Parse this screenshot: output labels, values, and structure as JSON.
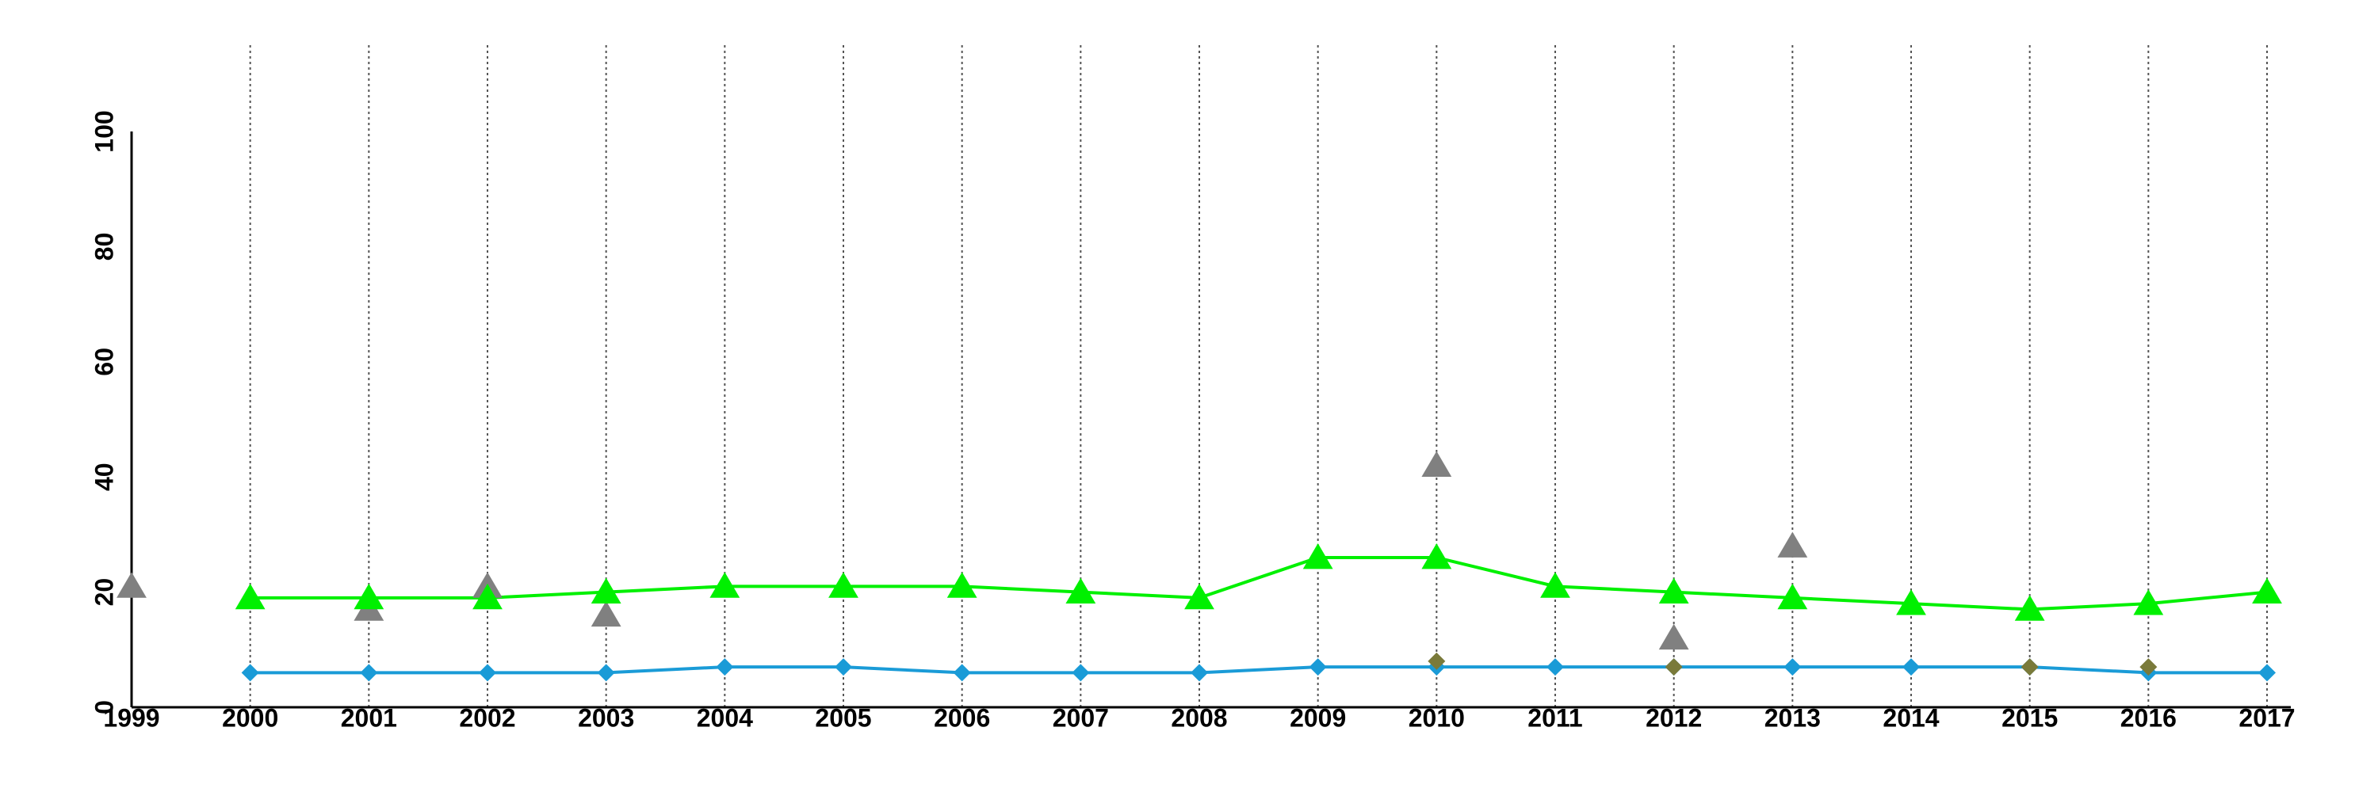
{
  "chart_data": {
    "type": "line",
    "x": [
      1999,
      2000,
      2001,
      2002,
      2003,
      2004,
      2005,
      2006,
      2007,
      2008,
      2009,
      2010,
      2011,
      2012,
      2013,
      2014,
      2015,
      2016,
      2017
    ],
    "xlim": [
      1999,
      2017
    ],
    "xticks": [
      1999,
      2000,
      2001,
      2002,
      2003,
      2004,
      2005,
      2006,
      2007,
      2008,
      2009,
      2010,
      2011,
      2012,
      2013,
      2014,
      2015,
      2016,
      2017
    ],
    "ylim": [
      0,
      100
    ],
    "yticks": [
      0,
      20,
      40,
      60,
      80,
      100
    ],
    "grid": "x-dotted",
    "series": [
      {
        "color": "#1a9bd7",
        "marker": "diamond",
        "line": true,
        "values": [
          null,
          6,
          6,
          6,
          6,
          7,
          7,
          6,
          6,
          6,
          7,
          7,
          7,
          7,
          7,
          7,
          7,
          6,
          6
        ]
      },
      {
        "color": "#7a7a3a",
        "marker": "diamond",
        "line": false,
        "values": [
          null,
          null,
          null,
          null,
          null,
          null,
          null,
          null,
          null,
          null,
          null,
          8,
          null,
          7,
          null,
          null,
          7,
          7,
          null
        ]
      },
      {
        "color": "#808080",
        "marker": "triangle",
        "line": false,
        "values": [
          21,
          null,
          17,
          21,
          16,
          null,
          null,
          null,
          null,
          null,
          null,
          42,
          null,
          12,
          28,
          null,
          null,
          null,
          null
        ]
      },
      {
        "color": "#00f000",
        "marker": "triangle",
        "line": true,
        "values": [
          null,
          19,
          19,
          19,
          20,
          21,
          21,
          21,
          20,
          19,
          26,
          26,
          21,
          20,
          19,
          18,
          17,
          18,
          20
        ]
      }
    ]
  }
}
